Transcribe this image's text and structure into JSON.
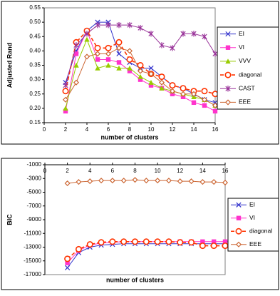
{
  "chart_data": [
    {
      "type": "line",
      "ylabel": "Adjusted Rand",
      "xlabel": "number of clusters",
      "x": [
        2,
        3,
        4,
        5,
        6,
        7,
        8,
        9,
        10,
        11,
        12,
        13,
        14,
        15,
        16
      ],
      "xlim": [
        0,
        16
      ],
      "xticks": [
        0,
        2,
        4,
        6,
        8,
        10,
        12,
        14,
        16
      ],
      "ylim": [
        0.15,
        0.55
      ],
      "yticks": [
        0.15,
        {
          "value": 0.2,
          "label": "0.20"
        },
        0.25,
        {
          "value": 0.3,
          "label": "0.30"
        },
        0.35,
        {
          "value": 0.4,
          "label": "0.40"
        },
        0.45,
        {
          "value": 0.5,
          "label": "0.50"
        },
        0.55
      ],
      "grid": false,
      "legend": "right",
      "series": [
        {
          "name": "EI",
          "color": "#3333cc",
          "marker": "x",
          "values": [
            0.29,
            0.4,
            0.47,
            0.5,
            0.5,
            0.39,
            0.36,
            0.34,
            0.34,
            0.31,
            0.28,
            0.27,
            0.25,
            0.23,
            0.22
          ]
        },
        {
          "name": "VI",
          "color": "#ff33cc",
          "marker": "square",
          "values": [
            0.19,
            0.39,
            0.47,
            0.37,
            0.37,
            0.36,
            0.33,
            0.3,
            0.28,
            0.27,
            0.25,
            0.24,
            0.22,
            0.21,
            0.19
          ]
        },
        {
          "name": "VVV",
          "color": "#99cc00",
          "marker": "triangle",
          "values": [
            0.2,
            0.35,
            0.44,
            0.34,
            0.35,
            0.34,
            0.34,
            0.31,
            0.29,
            0.27,
            0.26,
            0.25,
            0.24,
            0.23,
            0.21
          ]
        },
        {
          "name": "diagonal",
          "color": "#ff3300",
          "marker": "circle",
          "dashed": true,
          "values": [
            0.26,
            0.43,
            0.47,
            0.41,
            0.41,
            0.43,
            0.37,
            0.35,
            0.32,
            0.31,
            0.28,
            0.27,
            0.26,
            0.26,
            0.25
          ]
        },
        {
          "name": "CAST",
          "color": "#993399",
          "marker": "star",
          "values": [
            0.28,
            0.42,
            0.46,
            0.49,
            0.49,
            0.49,
            0.49,
            0.48,
            0.46,
            0.42,
            0.41,
            0.46,
            0.46,
            0.45,
            0.39
          ]
        },
        {
          "name": "EEE",
          "color": "#cc6633",
          "marker": "diamond",
          "values": [
            0.23,
            0.29,
            0.38,
            0.39,
            0.39,
            0.41,
            0.4,
            0.33,
            0.32,
            0.29,
            0.26,
            0.25,
            0.25,
            0.23,
            0.21
          ]
        }
      ]
    },
    {
      "type": "line",
      "ylabel": "BIC",
      "xlabel": "number of clusters",
      "x": [
        2,
        3,
        4,
        5,
        6,
        7,
        8,
        9,
        10,
        11,
        12,
        13,
        14,
        15,
        16
      ],
      "xlim": [
        0,
        16
      ],
      "xticks": [
        0,
        2,
        4,
        6,
        8,
        10,
        12,
        14,
        16
      ],
      "ylim": [
        -17000,
        -1000
      ],
      "yticks": [
        -17000,
        -15000,
        -13000,
        -11000,
        -9000,
        -7000,
        -5000,
        -3000,
        -1000
      ],
      "grid": false,
      "legend": "right",
      "series": [
        {
          "name": "EI",
          "color": "#3333cc",
          "marker": "x",
          "values": [
            -16000,
            -13800,
            -13000,
            -12700,
            -12600,
            -12500,
            -12500,
            -12500,
            -12500,
            -12500,
            -12500,
            -12500,
            -12500,
            -12500,
            -12500
          ]
        },
        {
          "name": "VI",
          "color": "#ff33cc",
          "marker": "square",
          "values": [
            -15300,
            -13500,
            -12700,
            -12400,
            -12300,
            -12200,
            -12200,
            -12200,
            -12200,
            -12200,
            -12200,
            -12200,
            -12200,
            -12200,
            -12200
          ]
        },
        {
          "name": "diagonal",
          "color": "#ff3300",
          "marker": "circle",
          "dashed": true,
          "values": [
            -14700,
            -13300,
            -12600,
            -12300,
            -12200,
            -12200,
            -12200,
            -12200,
            -12200,
            -12200,
            -12300,
            -12300,
            -12800,
            -12800,
            -12800
          ]
        },
        {
          "name": "EEE",
          "color": "#cc6633",
          "marker": "diamond",
          "values": [
            -3700,
            -3500,
            -3400,
            -3300,
            -3300,
            -3300,
            -3200,
            -3300,
            -3300,
            -3300,
            -3400,
            -3400,
            -3500,
            -3500,
            -3600
          ]
        }
      ]
    }
  ]
}
